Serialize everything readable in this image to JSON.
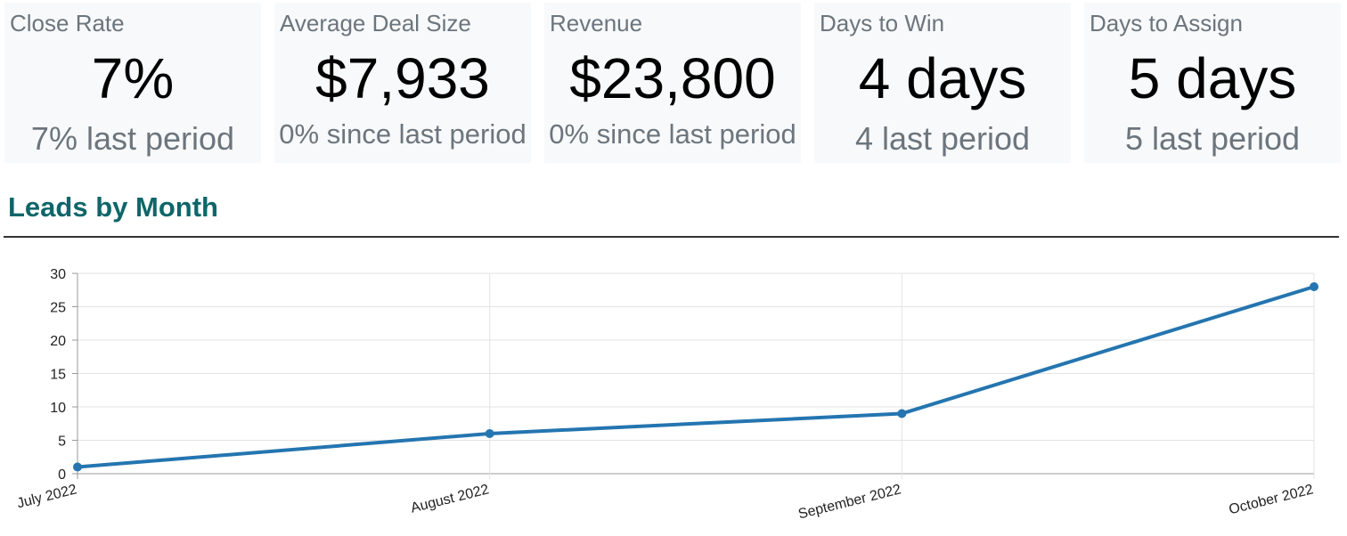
{
  "kpis": [
    {
      "label": "Close Rate",
      "value": "7%",
      "sub": "7% last period"
    },
    {
      "label": "Average Deal Size",
      "value": "$7,933",
      "sub": "0% since last period"
    },
    {
      "label": "Revenue",
      "value": "$23,800",
      "sub": "0% since last period"
    },
    {
      "label": "Days to Win",
      "value": "4 days",
      "sub": "4 last period"
    },
    {
      "label": "Days to Assign",
      "value": "5 days",
      "sub": "5 last period"
    }
  ],
  "section": {
    "title": "Leads by Month"
  },
  "colors": {
    "accent": "#0e6669",
    "line": "#2475b0",
    "card_bg": "#f8f9fa",
    "muted": "#6c757d"
  },
  "chart_data": {
    "type": "line",
    "categories": [
      "July 2022",
      "August 2022",
      "September 2022",
      "October 2022"
    ],
    "series": [
      {
        "values": [
          1,
          6,
          9,
          28
        ]
      }
    ],
    "ylim": [
      0,
      30
    ],
    "yticks": [
      0,
      5,
      10,
      15,
      20,
      25,
      30
    ],
    "grid": true,
    "legend": "none"
  }
}
